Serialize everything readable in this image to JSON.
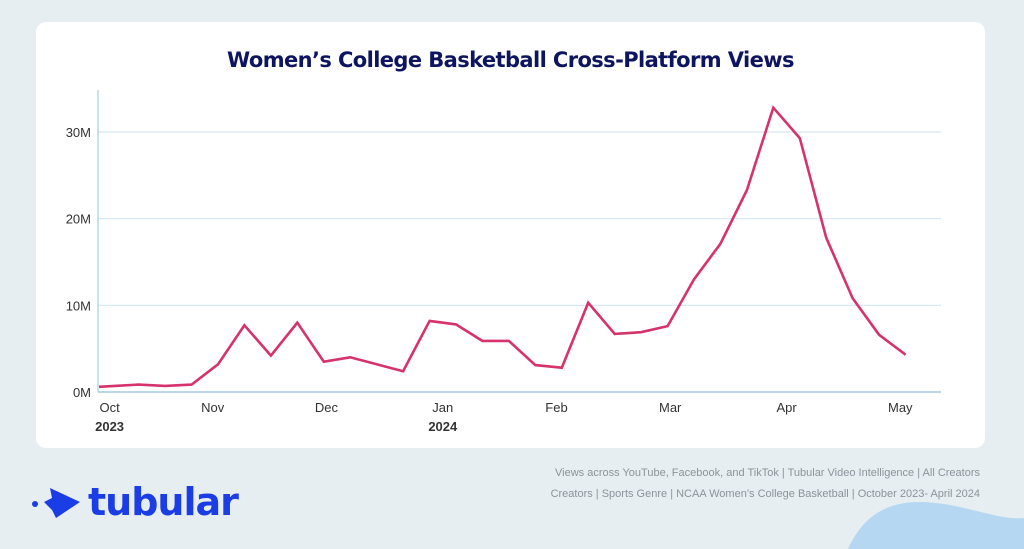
{
  "title": "Women’s College Basketball Cross-Platform Views",
  "colors": {
    "line": "#d6336c",
    "title": "#0d1460",
    "brand": "#1b3de6",
    "grid": "#d3e7f2",
    "axis": "#b9d7ec",
    "blob": "#b5d7f1"
  },
  "brand": {
    "name": "tubular",
    "icon": "arrow-mark-icon"
  },
  "caption": {
    "line1": "Views across YouTube, Facebook, and TikTok | Tubular Video Intelligence | All Creators",
    "line2": "Creators | Sports Genre | NCAA Women’s College Basketball | October 2023- April 2024"
  },
  "chart_data": {
    "type": "line",
    "title": "Women’s College Basketball Cross-Platform Views",
    "xlabel": "",
    "ylabel": "",
    "x_unit": "week index (approx. weekly points, Oct 2023 – May 2024)",
    "x": [
      0,
      1.5,
      2.5,
      3.5,
      4.5,
      5.5,
      6.5,
      7.5,
      8.5,
      9.5,
      10.5,
      11.5,
      12.5,
      13.5,
      14.5,
      15.5,
      16.5,
      17.5,
      18.5,
      19.5,
      20.5,
      21.5,
      22.5,
      23.5,
      24.5,
      25.5,
      26.5,
      27.5,
      28.5,
      29.5,
      30.5
    ],
    "series": [
      {
        "name": "Cross-Platform Views (M)",
        "values": [
          0.6,
          0.85,
          0.7,
          0.85,
          3.2,
          7.7,
          4.2,
          8.0,
          3.5,
          4.0,
          3.2,
          2.4,
          8.2,
          7.8,
          5.9,
          5.9,
          3.1,
          2.8,
          10.3,
          6.7,
          6.9,
          7.6,
          13.0,
          17.1,
          23.3,
          32.8,
          29.3,
          17.8,
          10.8,
          6.6,
          4.3
        ]
      }
    ],
    "ylim": [
      0,
      35
    ],
    "xlim": [
      0,
      31.5
    ],
    "yticks": [
      {
        "value": 0,
        "label": "0M"
      },
      {
        "value": 10,
        "label": "10M"
      },
      {
        "value": 20,
        "label": "20M"
      },
      {
        "value": 30,
        "label": "30M"
      }
    ],
    "xticks": [
      {
        "value": 0.4,
        "label": "Oct",
        "year": "2023"
      },
      {
        "value": 4.3,
        "label": "Nov",
        "year": ""
      },
      {
        "value": 8.6,
        "label": "Dec",
        "year": ""
      },
      {
        "value": 13.0,
        "label": "Jan",
        "year": "2024"
      },
      {
        "value": 17.3,
        "label": "Feb",
        "year": ""
      },
      {
        "value": 21.6,
        "label": "Mar",
        "year": ""
      },
      {
        "value": 26.0,
        "label": "Apr",
        "year": ""
      },
      {
        "value": 30.3,
        "label": "May",
        "year": ""
      }
    ],
    "grid": true,
    "legend": "none"
  }
}
